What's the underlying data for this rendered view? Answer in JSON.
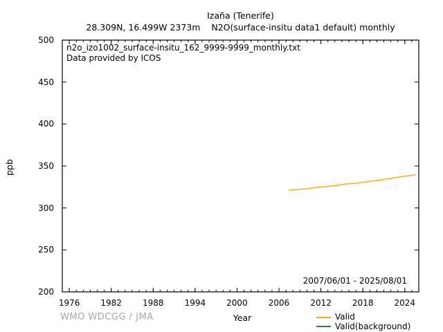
{
  "header": {
    "title_line1": "Izaña (Tenerife)",
    "title_line2": "28.309N, 16.499W 2373m    N2O(surface-insitu data1 default) monthly"
  },
  "plot_annotations": {
    "source_file": "n2o_izo1002_surface-insitu_162_9999-9999_monthly.txt",
    "provider": "Data provided by ICOS",
    "date_range": "2007/06/01 - 2025/08/01"
  },
  "footer": {
    "xlabel": "Year",
    "ylabel": "ppb",
    "watermark": "WMO WDCGG / JMA"
  },
  "legend": {
    "items": [
      {
        "label": "Valid",
        "color": "#ffa500"
      },
      {
        "label": "Valid(background)",
        "color": "#2e7d46"
      }
    ]
  },
  "colors": {
    "frame": "#000000",
    "valid_line": "#ffa500",
    "background_line": "#2e7d46",
    "watermark": "#a6a6a6"
  },
  "chart_data": {
    "type": "line",
    "title": "Izaña (Tenerife)",
    "subtitle": "28.309N, 16.499W 2373m    N2O(surface-insitu data1 default) monthly",
    "xlabel": "Year",
    "ylabel": "ppb",
    "xlim": [
      1975,
      2026
    ],
    "ylim": [
      200,
      500
    ],
    "x_major_ticks": [
      1976,
      1982,
      1988,
      1994,
      2000,
      2006,
      2012,
      2018,
      2024
    ],
    "x_minor_tick_step": 1,
    "y_major_ticks": [
      200,
      250,
      300,
      350,
      400,
      450,
      500
    ],
    "grid": false,
    "legend_position": "bottom-right-outside",
    "series": [
      {
        "name": "Valid",
        "color": "#ffa500",
        "points": [
          [
            2007.42,
            321.2
          ],
          [
            2007.92,
            321.5
          ],
          [
            2008.42,
            321.9
          ],
          [
            2008.92,
            322.2
          ],
          [
            2009.42,
            322.6
          ],
          [
            2009.92,
            323.0
          ],
          [
            2010.42,
            323.5
          ],
          [
            2010.92,
            323.9
          ],
          [
            2011.42,
            324.4
          ],
          [
            2011.92,
            324.8
          ],
          [
            2012.42,
            325.2
          ],
          [
            2012.92,
            325.6
          ],
          [
            2013.42,
            326.1
          ],
          [
            2013.92,
            326.6
          ],
          [
            2014.42,
            327.1
          ],
          [
            2014.92,
            327.7
          ],
          [
            2015.42,
            328.3
          ],
          [
            2015.92,
            328.7
          ],
          [
            2016.42,
            329.1
          ],
          [
            2016.92,
            329.5
          ],
          [
            2017.42,
            330.0
          ],
          [
            2017.92,
            330.5
          ],
          [
            2018.42,
            331.0
          ],
          [
            2018.92,
            331.5
          ],
          [
            2019.42,
            332.1
          ],
          [
            2019.92,
            332.6
          ],
          [
            2020.42,
            333.2
          ],
          [
            2020.92,
            333.8
          ],
          [
            2021.42,
            334.5
          ],
          [
            2021.92,
            335.2
          ],
          [
            2022.42,
            335.9
          ],
          [
            2022.92,
            336.5
          ],
          [
            2023.42,
            337.1
          ],
          [
            2023.92,
            337.7
          ],
          [
            2024.42,
            338.3
          ],
          [
            2024.92,
            338.9
          ],
          [
            2025.42,
            339.4
          ],
          [
            2025.58,
            339.8
          ]
        ]
      },
      {
        "name": "Valid(background)",
        "color": "#2e7d46",
        "points": []
      }
    ]
  }
}
